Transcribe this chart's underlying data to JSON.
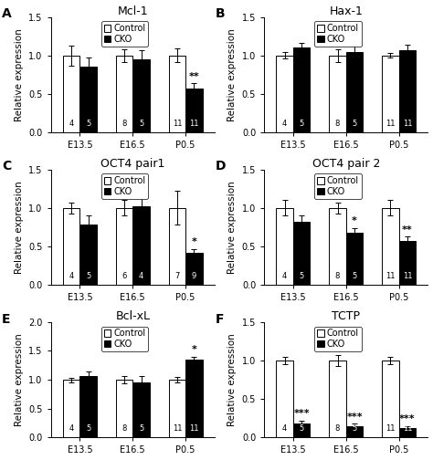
{
  "panels": [
    {
      "label": "A",
      "title": "Mcl-1",
      "ylim": [
        0,
        1.5
      ],
      "yticks": [
        0.0,
        0.5,
        1.0,
        1.5
      ],
      "ylabel": "Relative expression",
      "groups": [
        "E13.5",
        "E16.5",
        "P0.5"
      ],
      "control_vals": [
        1.0,
        1.0,
        1.0
      ],
      "cko_vals": [
        0.85,
        0.95,
        0.57
      ],
      "control_err": [
        0.13,
        0.08,
        0.09
      ],
      "cko_err": [
        0.12,
        0.12,
        0.07
      ],
      "control_n": [
        4,
        8,
        11
      ],
      "cko_n": [
        5,
        5,
        11
      ],
      "significance": [
        "",
        "",
        "**"
      ],
      "sig_on_cko": [
        false,
        false,
        true
      ]
    },
    {
      "label": "B",
      "title": "Hax-1",
      "ylim": [
        0,
        1.5
      ],
      "yticks": [
        0.0,
        0.5,
        1.0,
        1.5
      ],
      "ylabel": "Relative expression",
      "groups": [
        "E13.5",
        "E16.5",
        "P0.5"
      ],
      "control_vals": [
        1.0,
        1.0,
        1.0
      ],
      "cko_vals": [
        1.1,
        1.05,
        1.07
      ],
      "control_err": [
        0.04,
        0.08,
        0.03
      ],
      "cko_err": [
        0.06,
        0.1,
        0.07
      ],
      "control_n": [
        4,
        8,
        11
      ],
      "cko_n": [
        5,
        5,
        11
      ],
      "significance": [
        "",
        "",
        ""
      ],
      "sig_on_cko": [
        false,
        false,
        false
      ]
    },
    {
      "label": "C",
      "title": "OCT4 pair1",
      "ylim": [
        0,
        1.5
      ],
      "yticks": [
        0.0,
        0.5,
        1.0,
        1.5
      ],
      "ylabel": "Relative expression",
      "groups": [
        "E13.5",
        "E16.5",
        "P0.5"
      ],
      "control_vals": [
        1.0,
        1.0,
        1.0
      ],
      "cko_vals": [
        0.78,
        1.02,
        0.42
      ],
      "control_err": [
        0.07,
        0.1,
        0.22
      ],
      "cko_err": [
        0.12,
        0.18,
        0.05
      ],
      "control_n": [
        4,
        6,
        7
      ],
      "cko_n": [
        5,
        4,
        9
      ],
      "significance": [
        "",
        "",
        "*"
      ],
      "sig_on_cko": [
        false,
        false,
        true
      ]
    },
    {
      "label": "D",
      "title": "OCT4 pair 2",
      "ylim": [
        0,
        1.5
      ],
      "yticks": [
        0.0,
        0.5,
        1.0,
        1.5
      ],
      "ylabel": "Relative expression",
      "groups": [
        "E13.5",
        "E16.5",
        "P0.5"
      ],
      "control_vals": [
        1.0,
        1.0,
        1.0
      ],
      "cko_vals": [
        0.82,
        0.68,
        0.57
      ],
      "control_err": [
        0.1,
        0.07,
        0.1
      ],
      "cko_err": [
        0.08,
        0.06,
        0.06
      ],
      "control_n": [
        4,
        8,
        11
      ],
      "cko_n": [
        5,
        5,
        11
      ],
      "significance": [
        "",
        "*",
        "**"
      ],
      "sig_on_cko": [
        false,
        true,
        true
      ]
    },
    {
      "label": "E",
      "title": "Bcl-xL",
      "ylim": [
        0,
        2.0
      ],
      "yticks": [
        0.0,
        0.5,
        1.0,
        1.5,
        2.0
      ],
      "ylabel": "Relative expression",
      "groups": [
        "E13.5",
        "E16.5",
        "P0.5"
      ],
      "control_vals": [
        1.0,
        1.0,
        1.0
      ],
      "cko_vals": [
        1.07,
        0.95,
        1.35
      ],
      "control_err": [
        0.04,
        0.07,
        0.05
      ],
      "cko_err": [
        0.07,
        0.12,
        0.05
      ],
      "control_n": [
        4,
        8,
        11
      ],
      "cko_n": [
        5,
        5,
        11
      ],
      "significance": [
        "",
        "",
        "*"
      ],
      "sig_on_cko": [
        false,
        false,
        true
      ]
    },
    {
      "label": "F",
      "title": "TCTP",
      "ylim": [
        0,
        1.5
      ],
      "yticks": [
        0.0,
        0.5,
        1.0,
        1.5
      ],
      "ylabel": "Relative expression",
      "groups": [
        "E13.5",
        "E16.5",
        "P0.5"
      ],
      "control_vals": [
        1.0,
        1.0,
        1.0
      ],
      "cko_vals": [
        0.18,
        0.15,
        0.12
      ],
      "control_err": [
        0.05,
        0.07,
        0.05
      ],
      "cko_err": [
        0.04,
        0.03,
        0.03
      ],
      "control_n": [
        4,
        8,
        11
      ],
      "cko_n": [
        5,
        5,
        11
      ],
      "significance": [
        "***",
        "***",
        "***"
      ],
      "sig_on_cko": [
        true,
        true,
        true
      ]
    }
  ],
  "bar_width": 0.32,
  "control_color": "white",
  "cko_color": "black",
  "edge_color": "black",
  "label_fontsize": 7.5,
  "title_fontsize": 9,
  "tick_fontsize": 7,
  "legend_fontsize": 7,
  "n_fontsize": 6,
  "sig_fontsize": 8,
  "panel_label_fontsize": 10
}
